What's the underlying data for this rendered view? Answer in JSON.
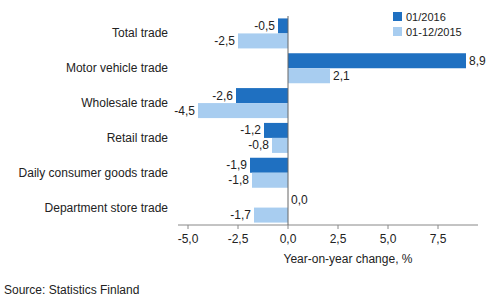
{
  "chart_data": {
    "type": "bar",
    "orientation": "horizontal",
    "categories": [
      "Total trade",
      "Motor vehicle trade",
      "Wholesale trade",
      "Retail trade",
      "Daily consumer goods trade",
      "Department store trade"
    ],
    "series": [
      {
        "name": "01/2016",
        "color": "#1f70c1",
        "values": [
          -0.5,
          8.9,
          -2.6,
          -1.2,
          -1.9,
          0.0
        ],
        "value_labels": [
          "-0,5",
          "8,9",
          "-2,6",
          "-1,2",
          "-1,9",
          "0,0"
        ]
      },
      {
        "name": "01-12/2015",
        "color": "#a8cdf0",
        "values": [
          -2.5,
          2.1,
          -4.5,
          -0.8,
          -1.8,
          -1.7
        ],
        "value_labels": [
          "-2,5",
          "2,1",
          "-4,5",
          "-0,8",
          "-1,8",
          "-1,7"
        ]
      }
    ],
    "xlim": [
      -5.5,
      9.5
    ],
    "xticks": [
      {
        "value": -5,
        "label": "-5,0"
      },
      {
        "value": -2.5,
        "label": "-2,5"
      },
      {
        "value": 0,
        "label": "0,0"
      },
      {
        "value": 2.5,
        "label": "2,5"
      },
      {
        "value": 5,
        "label": "5,0"
      },
      {
        "value": 7.5,
        "label": "7,5"
      }
    ],
    "x_label": "Year-on-year change, %",
    "annotations": [
      "Source: Statistics Finland"
    ],
    "data_labels": true,
    "grid": false,
    "legend": "top-right"
  }
}
